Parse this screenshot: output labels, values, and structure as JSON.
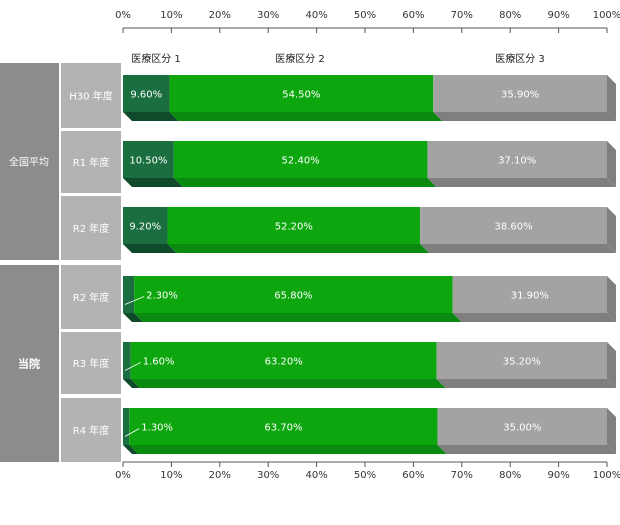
{
  "chart_data": {
    "type": "bar",
    "orientation": "horizontal",
    "stacked": true,
    "x_ticks": [
      "0%",
      "10%",
      "20%",
      "30%",
      "40%",
      "50%",
      "60%",
      "70%",
      "80%",
      "90%",
      "100%"
    ],
    "xlim": [
      0,
      100
    ],
    "series_names": [
      "医療区分 1",
      "医療区分 2",
      "医療区分 3"
    ],
    "colors": {
      "s1_face": "#1a6e3f",
      "s1_side": "#0f4a2a",
      "s2_face": "#0ea60e",
      "s2_side": "#0b8a10",
      "s3_face": "#a3a3a3",
      "s3_side": "#7f7f7f",
      "label_panel": "#8c8c8c",
      "label_panel_light": "#b3b3b3"
    },
    "groups": [
      {
        "name": "全国平均",
        "rows": [
          {
            "label": "H30 年度",
            "values": [
              9.6,
              54.5,
              35.9
            ],
            "texts": [
              "9.60%",
              "54.50%",
              "35.90%"
            ]
          },
          {
            "label": "R1 年度",
            "values": [
              10.5,
              52.4,
              37.1
            ],
            "texts": [
              "10.50%",
              "52.40%",
              "37.10%"
            ]
          },
          {
            "label": "R2 年度",
            "values": [
              9.2,
              52.2,
              38.6
            ],
            "texts": [
              "9.20%",
              "52.20%",
              "38.60%"
            ]
          }
        ]
      },
      {
        "name": "当院",
        "rows": [
          {
            "label": "R2 年度",
            "values": [
              2.3,
              65.8,
              31.9
            ],
            "texts": [
              "2.30%",
              "65.80%",
              "31.90%"
            ]
          },
          {
            "label": "R3 年度",
            "values": [
              1.6,
              63.2,
              35.2
            ],
            "texts": [
              "1.60%",
              "63.20%",
              "35.20%"
            ]
          },
          {
            "label": "R4 年度",
            "values": [
              1.3,
              63.7,
              35.0
            ],
            "texts": [
              "1.30%",
              "63.70%",
              "35.00%"
            ]
          }
        ]
      }
    ]
  }
}
